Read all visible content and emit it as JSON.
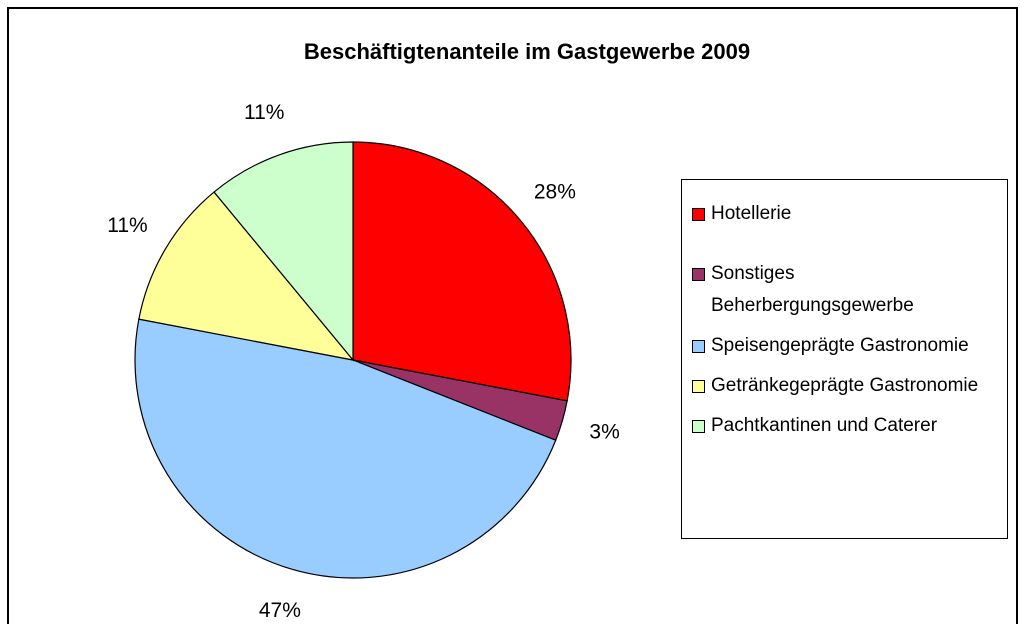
{
  "chart_data": {
    "type": "pie",
    "title": "Beschäftigtenanteile im Gastgewerbe 2009",
    "categories": [
      "Hotellerie",
      "Sonstiges Beherbergungsgewerbe",
      "Speisengeprägte Gastronomie",
      "Getränkegeprägte Gastronomie",
      "Pachtkantinen und Caterer"
    ],
    "values": [
      28,
      3,
      47,
      11,
      11
    ],
    "value_labels": [
      "28%",
      "3%",
      "47%",
      "11%",
      "11%"
    ],
    "colors": [
      "#ff0000",
      "#993366",
      "#99ccff",
      "#ffff99",
      "#ccffcc"
    ],
    "legend": "right"
  }
}
